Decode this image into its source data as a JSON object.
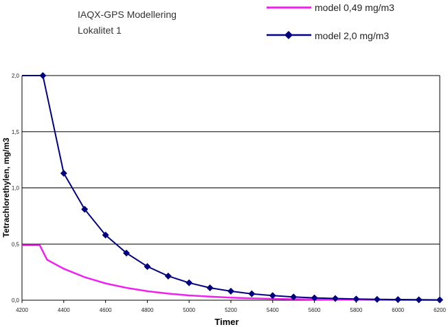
{
  "chart_data": {
    "type": "line",
    "title": "IAQX-GPS Modellering",
    "subtitle": "Lokalitet 1",
    "xlabel": "Timer",
    "ylabel": "Tetrachlorethylen, mg/m3",
    "xlim": [
      4200,
      6200
    ],
    "ylim": [
      0,
      2.0
    ],
    "x_ticks": [
      "4200",
      "4400",
      "4600",
      "4800",
      "5000",
      "5200",
      "5400",
      "5600",
      "5800",
      "6000",
      "6200"
    ],
    "y_ticks": [
      "0,0",
      "0,5",
      "1,0",
      "1,5",
      "2,0"
    ],
    "grid": "horizontal",
    "legend_position": "top-right",
    "series": [
      {
        "name": "model 0,49 mg/m3",
        "color": "#ee22ee",
        "marker": "none",
        "points": [
          [
            4200,
            0.49
          ],
          [
            4285,
            0.49
          ],
          [
            4320,
            0.36
          ],
          [
            4400,
            0.28
          ],
          [
            4500,
            0.205
          ],
          [
            4600,
            0.15
          ],
          [
            4700,
            0.11
          ],
          [
            4800,
            0.08
          ],
          [
            4900,
            0.059
          ],
          [
            5000,
            0.043
          ],
          [
            5100,
            0.032
          ],
          [
            5200,
            0.023
          ],
          [
            5300,
            0.017
          ],
          [
            5400,
            0.012
          ],
          [
            5500,
            0.009
          ],
          [
            5600,
            0.007
          ],
          [
            5700,
            0.005
          ],
          [
            5800,
            0.004
          ],
          [
            5900,
            0.003
          ],
          [
            6000,
            0.002
          ],
          [
            6100,
            0.001
          ],
          [
            6200,
            0.001
          ]
        ]
      },
      {
        "name": "model 2,0 mg/m3",
        "color": "#000080",
        "marker": "diamond",
        "points": [
          [
            4200,
            2.0
          ],
          [
            4300,
            2.0
          ],
          [
            4400,
            1.13
          ],
          [
            4500,
            0.81
          ],
          [
            4600,
            0.58
          ],
          [
            4700,
            0.42
          ],
          [
            4800,
            0.3
          ],
          [
            4900,
            0.215
          ],
          [
            5000,
            0.155
          ],
          [
            5100,
            0.11
          ],
          [
            5200,
            0.08
          ],
          [
            5300,
            0.057
          ],
          [
            5400,
            0.041
          ],
          [
            5500,
            0.029
          ],
          [
            5600,
            0.021
          ],
          [
            5700,
            0.015
          ],
          [
            5800,
            0.011
          ],
          [
            5900,
            0.008
          ],
          [
            6000,
            0.006
          ],
          [
            6100,
            0.004
          ],
          [
            6200,
            0.003
          ]
        ]
      }
    ]
  }
}
